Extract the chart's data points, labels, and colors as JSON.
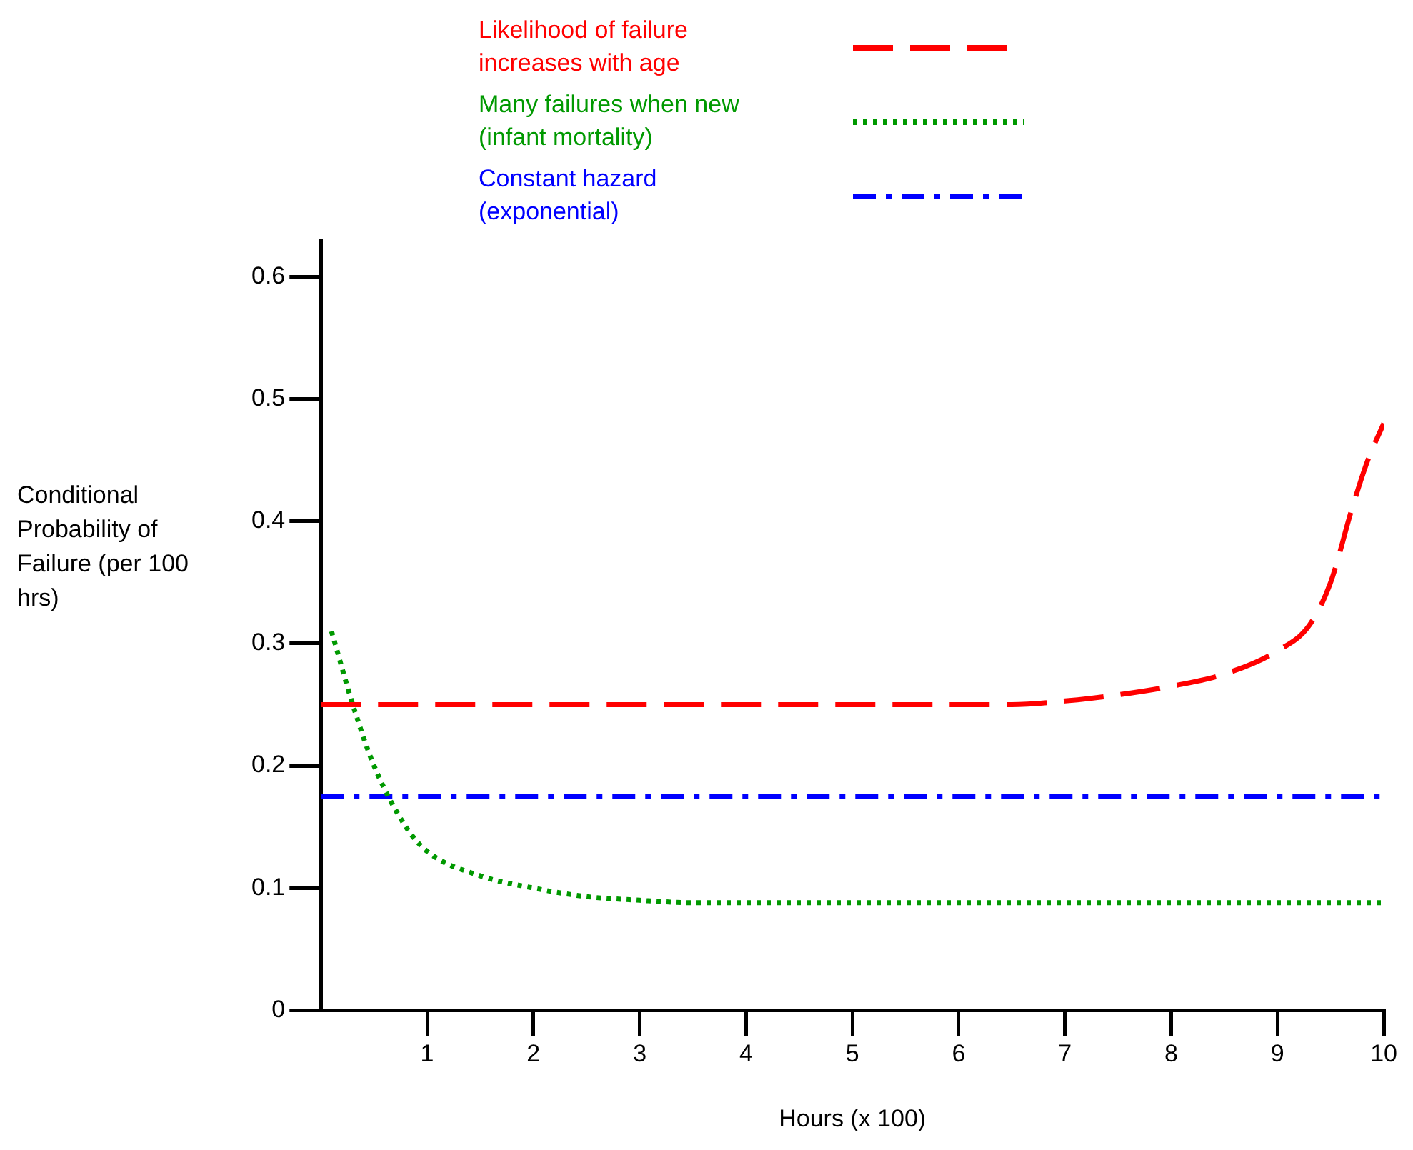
{
  "chart_data": {
    "type": "line",
    "xlabel": "Hours (x 100)",
    "ylabel": "Conditional Probability of Failure (per 100 hrs)",
    "xlim": [
      0,
      10
    ],
    "xticks": [
      1,
      2,
      3,
      4,
      5,
      6,
      7,
      8,
      9,
      10
    ],
    "ylim": [
      0,
      0.63
    ],
    "yticks": [
      0,
      0.1,
      0.2,
      0.3,
      0.4,
      0.5,
      0.6
    ],
    "grid": false,
    "legend": "top",
    "marker": "none",
    "series": [
      {
        "name": "Likelihood of failure increases with age",
        "color": "#ff0000",
        "line_style": "dashed",
        "x": [
          0,
          1,
          2,
          3,
          4,
          5,
          6,
          6.5,
          7,
          7.5,
          8,
          8.5,
          9,
          9.3,
          9.5,
          9.7,
          9.85,
          10
        ],
        "values": [
          0.25,
          0.25,
          0.25,
          0.25,
          0.25,
          0.25,
          0.25,
          0.25,
          0.253,
          0.258,
          0.265,
          0.275,
          0.294,
          0.315,
          0.35,
          0.41,
          0.45,
          0.48
        ]
      },
      {
        "name": "Many failures when new (infant mortality)",
        "color": "#009900",
        "line_style": "dotted",
        "x": [
          0.1,
          0.3,
          0.5,
          0.8,
          1,
          1.5,
          2,
          2.5,
          3,
          3.5,
          5,
          7,
          10
        ],
        "values": [
          0.31,
          0.25,
          0.2,
          0.15,
          0.13,
          0.11,
          0.1,
          0.093,
          0.09,
          0.088,
          0.088,
          0.088,
          0.088
        ]
      },
      {
        "name": "Constant hazard (exponential)",
        "color": "#0000ff",
        "line_style": "dashdot",
        "x": [
          0,
          10
        ],
        "values": [
          0.175,
          0.175
        ]
      }
    ]
  }
}
